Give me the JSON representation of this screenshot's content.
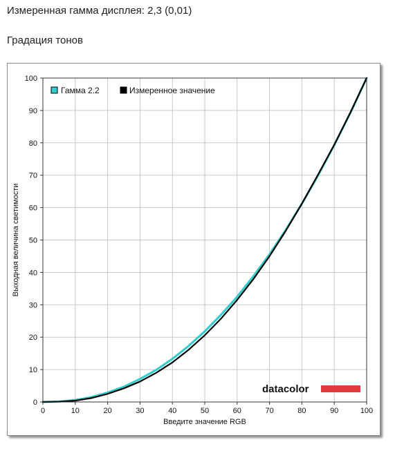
{
  "header": {
    "title": "Измеренная гамма дисплея: 2,3 (0,01)",
    "subtitle": "Градация тонов"
  },
  "logo": {
    "text": "datacolor",
    "bar_color": "#e03c3c"
  },
  "chart_data": {
    "type": "line",
    "xlabel": "Введите значение RGB",
    "ylabel": "Выходная величина светимости",
    "xlim": [
      0,
      100
    ],
    "ylim": [
      0,
      100
    ],
    "xticks": [
      0,
      10,
      20,
      30,
      40,
      50,
      60,
      70,
      80,
      90,
      100
    ],
    "yticks": [
      0,
      10,
      20,
      30,
      40,
      50,
      60,
      70,
      80,
      90,
      100
    ],
    "grid": true,
    "legend_position": "top-left",
    "series": [
      {
        "name": "Гамма 2.2",
        "color": "#33cccc",
        "x": [
          0,
          5,
          10,
          15,
          20,
          25,
          30,
          35,
          40,
          45,
          50,
          55,
          60,
          65,
          70,
          75,
          80,
          85,
          90,
          95,
          100
        ],
        "y": [
          0,
          0.1,
          0.6,
          1.5,
          2.9,
          4.7,
          7.1,
          9.9,
          13.3,
          17.3,
          21.8,
          26.9,
          32.5,
          38.8,
          45.6,
          53.1,
          61.2,
          69.9,
          79.3,
          89.3,
          100
        ]
      },
      {
        "name": "Измеренное значение",
        "color": "#000000",
        "x": [
          0,
          5,
          10,
          15,
          20,
          25,
          30,
          35,
          40,
          45,
          50,
          55,
          60,
          65,
          70,
          75,
          80,
          85,
          90,
          95,
          100
        ],
        "y": [
          0,
          0.1,
          0.4,
          1.2,
          2.5,
          4.2,
          6.3,
          9.0,
          12.2,
          16.1,
          20.6,
          25.7,
          31.5,
          37.9,
          45.0,
          52.8,
          61.2,
          70.2,
          79.4,
          89.4,
          100
        ]
      }
    ]
  }
}
